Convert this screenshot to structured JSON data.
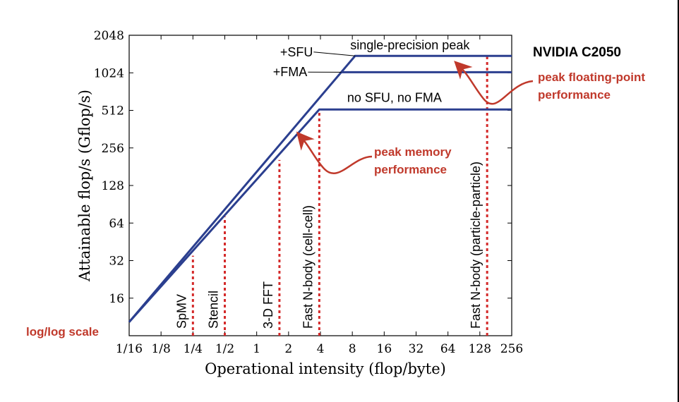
{
  "chart_data": {
    "type": "line",
    "scale": "log-log",
    "title": "NVIDIA C2050",
    "xlabel": "Operational intensity (flop/byte)",
    "ylabel": "Attainable flop/s (Gflop/s)",
    "xlim": [
      0.0625,
      256
    ],
    "ylim": [
      8,
      2048
    ],
    "x_ticks": [
      0.0625,
      0.125,
      0.25,
      0.5,
      1,
      2,
      4,
      8,
      16,
      32,
      64,
      128,
      256
    ],
    "x_tick_labels": [
      "1/16",
      "1/8",
      "1/4",
      "1/2",
      "1",
      "2",
      "4",
      "8",
      "16",
      "32",
      "64",
      "128",
      "256"
    ],
    "y_ticks": [
      16,
      32,
      64,
      128,
      256,
      512,
      1024,
      2048
    ],
    "y_tick_labels": [
      "16",
      "32",
      "64",
      "128",
      "256",
      "512",
      "1024",
      "2048"
    ],
    "grid": false,
    "line_color": "#2b3f8f",
    "kernel_color": "#d42a2a",
    "annotation_color": "#c0392b",
    "series": [
      {
        "name": "single-precision peak",
        "x": [
          0.0625,
          8.5,
          256
        ],
        "y": [
          10.3,
          1400,
          1400
        ]
      },
      {
        "name": "+FMA",
        "x": [
          6.3,
          256
        ],
        "y": [
          1035,
          1035
        ]
      },
      {
        "name": "no SFU, no FMA",
        "x": [
          0.0625,
          3.9,
          256
        ],
        "y": [
          10.3,
          520,
          520
        ]
      }
    ],
    "line_labels": [
      {
        "text": "single-precision peak",
        "x": 28,
        "y": 1580
      },
      {
        "text": "+SFU",
        "x": 3.4,
        "y": 1390
      },
      {
        "text": "+FMA",
        "x": 3.0,
        "y": 960
      },
      {
        "text": "no SFU, no FMA",
        "x": 20,
        "y": 600
      }
    ],
    "kernels": [
      {
        "name": "SpMV",
        "x": 0.25,
        "y": 35
      },
      {
        "name": "Stencil",
        "x": 0.5,
        "y": 72
      },
      {
        "name": "3-D FFT",
        "x": 1.64,
        "y": 205
      },
      {
        "name": "Fast N-body (cell-cell)",
        "x": 3.9,
        "y": 520
      },
      {
        "name": "Fast N-body (particle-particle)",
        "x": 150,
        "y": 1400
      }
    ],
    "annotations": [
      {
        "text": "log/log scale"
      },
      {
        "text": "peak memory",
        "text2": "performance"
      },
      {
        "text": "peak floating-point",
        "text2": "performance"
      }
    ]
  }
}
